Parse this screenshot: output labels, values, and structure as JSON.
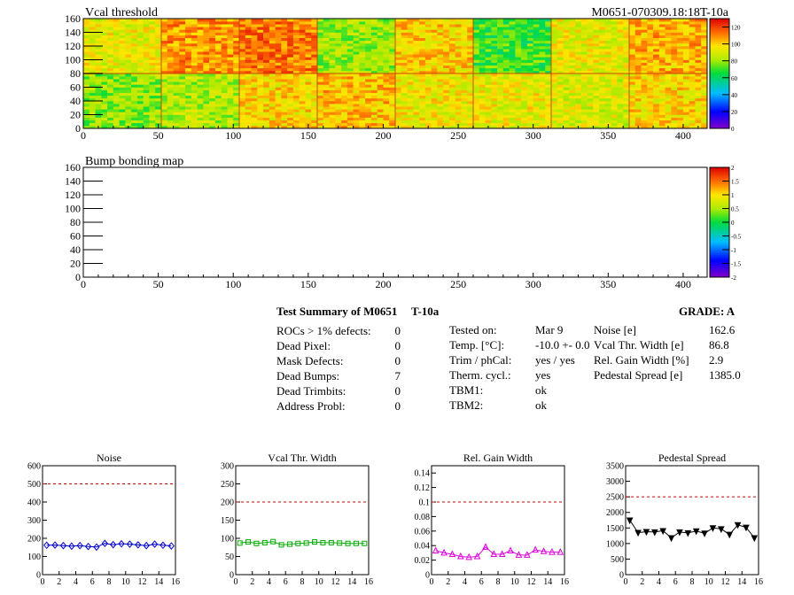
{
  "header": {
    "map_title": "Vcal threshold",
    "module_id": "M0651-070309.18:18T-10a",
    "bump_title": "Bump bonding map"
  },
  "chart_data": [
    {
      "type": "heatmap",
      "title": "Vcal threshold",
      "xlim": [
        0,
        416
      ],
      "ylim": [
        0,
        160
      ],
      "xticks": [
        0,
        50,
        100,
        150,
        200,
        250,
        300,
        350,
        400
      ],
      "yticks": [
        0,
        20,
        40,
        60,
        80,
        100,
        120,
        140,
        160
      ],
      "zlim": [
        0,
        130
      ],
      "colorbar_ticks": [
        0,
        20,
        40,
        60,
        80,
        100,
        120
      ],
      "roc_mean_values": {
        "top_row": [
          92,
          108,
          112,
          80,
          100,
          70,
          92,
          104
        ],
        "bottom_row": [
          78,
          82,
          98,
          102,
          94,
          92,
          90,
          98
        ]
      }
    },
    {
      "type": "heatmap",
      "title": "Bump bonding map",
      "xlim": [
        0,
        416
      ],
      "ylim": [
        0,
        160
      ],
      "xticks": [
        0,
        50,
        100,
        150,
        200,
        250,
        300,
        350,
        400
      ],
      "yticks": [
        0,
        20,
        40,
        60,
        80,
        100,
        120,
        140,
        160
      ],
      "zlim": [
        -2,
        2
      ],
      "colorbar_ticks": [
        "2",
        "1.5",
        "1",
        "0.5",
        "0",
        "-0.5",
        "-1",
        "-1.5",
        "-2"
      ]
    },
    {
      "type": "line",
      "title": "Noise",
      "x": [
        0,
        1,
        2,
        3,
        4,
        5,
        6,
        7,
        8,
        9,
        10,
        11,
        12,
        13,
        14,
        15
      ],
      "values": [
        162,
        163,
        160,
        157,
        160,
        155,
        152,
        172,
        165,
        170,
        168,
        164,
        160,
        168,
        162,
        158
      ],
      "threshold": 500,
      "xlim": [
        0,
        16
      ],
      "ylim": [
        0,
        600
      ],
      "yticks": [
        0,
        100,
        200,
        300,
        400,
        500,
        600
      ],
      "color": "#0000cc",
      "marker": "diamond"
    },
    {
      "type": "line",
      "title": "Vcal Thr. Width",
      "x": [
        0,
        1,
        2,
        3,
        4,
        5,
        6,
        7,
        8,
        9,
        10,
        11,
        12,
        13,
        14,
        15
      ],
      "values": [
        87,
        90,
        86,
        88,
        91,
        82,
        84,
        86,
        87,
        90,
        88,
        88,
        87,
        86,
        86,
        86
      ],
      "threshold": 200,
      "xlim": [
        0,
        16
      ],
      "ylim": [
        0,
        300
      ],
      "yticks": [
        0,
        50,
        100,
        150,
        200,
        250,
        300
      ],
      "color": "#00aa00",
      "marker": "square"
    },
    {
      "type": "line",
      "title": "Rel. Gain Width",
      "x": [
        0,
        1,
        2,
        3,
        4,
        5,
        6,
        7,
        8,
        9,
        10,
        11,
        12,
        13,
        14,
        15
      ],
      "values": [
        0.033,
        0.03,
        0.028,
        0.025,
        0.024,
        0.025,
        0.038,
        0.028,
        0.028,
        0.033,
        0.027,
        0.027,
        0.034,
        0.032,
        0.031,
        0.031
      ],
      "threshold": 0.1,
      "xlim": [
        0,
        16
      ],
      "ylim": [
        0,
        0.15
      ],
      "yticks": [
        0,
        0.02,
        0.04,
        0.06,
        0.08,
        0.1,
        0.12,
        0.14
      ],
      "color": "#dd00dd",
      "marker": "triangle-up"
    },
    {
      "type": "line",
      "title": "Pedestal Spread",
      "x": [
        0,
        1,
        2,
        3,
        4,
        5,
        6,
        7,
        8,
        9,
        10,
        11,
        12,
        13,
        14,
        15
      ],
      "values": [
        1750,
        1350,
        1380,
        1370,
        1410,
        1180,
        1370,
        1340,
        1400,
        1330,
        1500,
        1470,
        1290,
        1600,
        1520,
        1180
      ],
      "threshold": 2500,
      "xlim": [
        0,
        16
      ],
      "ylim": [
        0,
        3500
      ],
      "yticks": [
        0,
        500,
        1000,
        1500,
        2000,
        2500,
        3000,
        3500
      ],
      "color": "#000000",
      "marker": "triangle-down"
    }
  ],
  "summary": {
    "title": "Test Summary of M0651",
    "temp_label": "T-10a",
    "grade": "GRADE:  A",
    "defects": [
      {
        "label": "ROCs > 1% defects:",
        "value": "0"
      },
      {
        "label": "Dead Pixel:",
        "value": "0"
      },
      {
        "label": "Mask Defects:",
        "value": "0"
      },
      {
        "label": "Dead Bumps:",
        "value": "7"
      },
      {
        "label": "Dead Trimbits:",
        "value": "0"
      },
      {
        "label": "Address Probl:",
        "value": "0"
      }
    ],
    "conditions": [
      {
        "label": "Tested on:",
        "value": "Mar 9"
      },
      {
        "label": "Temp. [°C]:",
        "value": "-10.0 +- 0.0"
      },
      {
        "label": "Trim / phCal:",
        "value": "yes / yes"
      },
      {
        "label": "Therm. cycl.:",
        "value": "yes"
      },
      {
        "label": "TBM1:",
        "value": "ok"
      },
      {
        "label": "TBM2:",
        "value": "ok"
      }
    ],
    "performance": [
      {
        "label": "Noise [e]",
        "value": "162.6"
      },
      {
        "label": "Vcal Thr. Width [e]",
        "value": "86.8"
      },
      {
        "label": "Rel. Gain Width [%]",
        "value": "2.9"
      },
      {
        "label": "Pedestal Spread [e]",
        "value": "1385.0"
      }
    ]
  }
}
